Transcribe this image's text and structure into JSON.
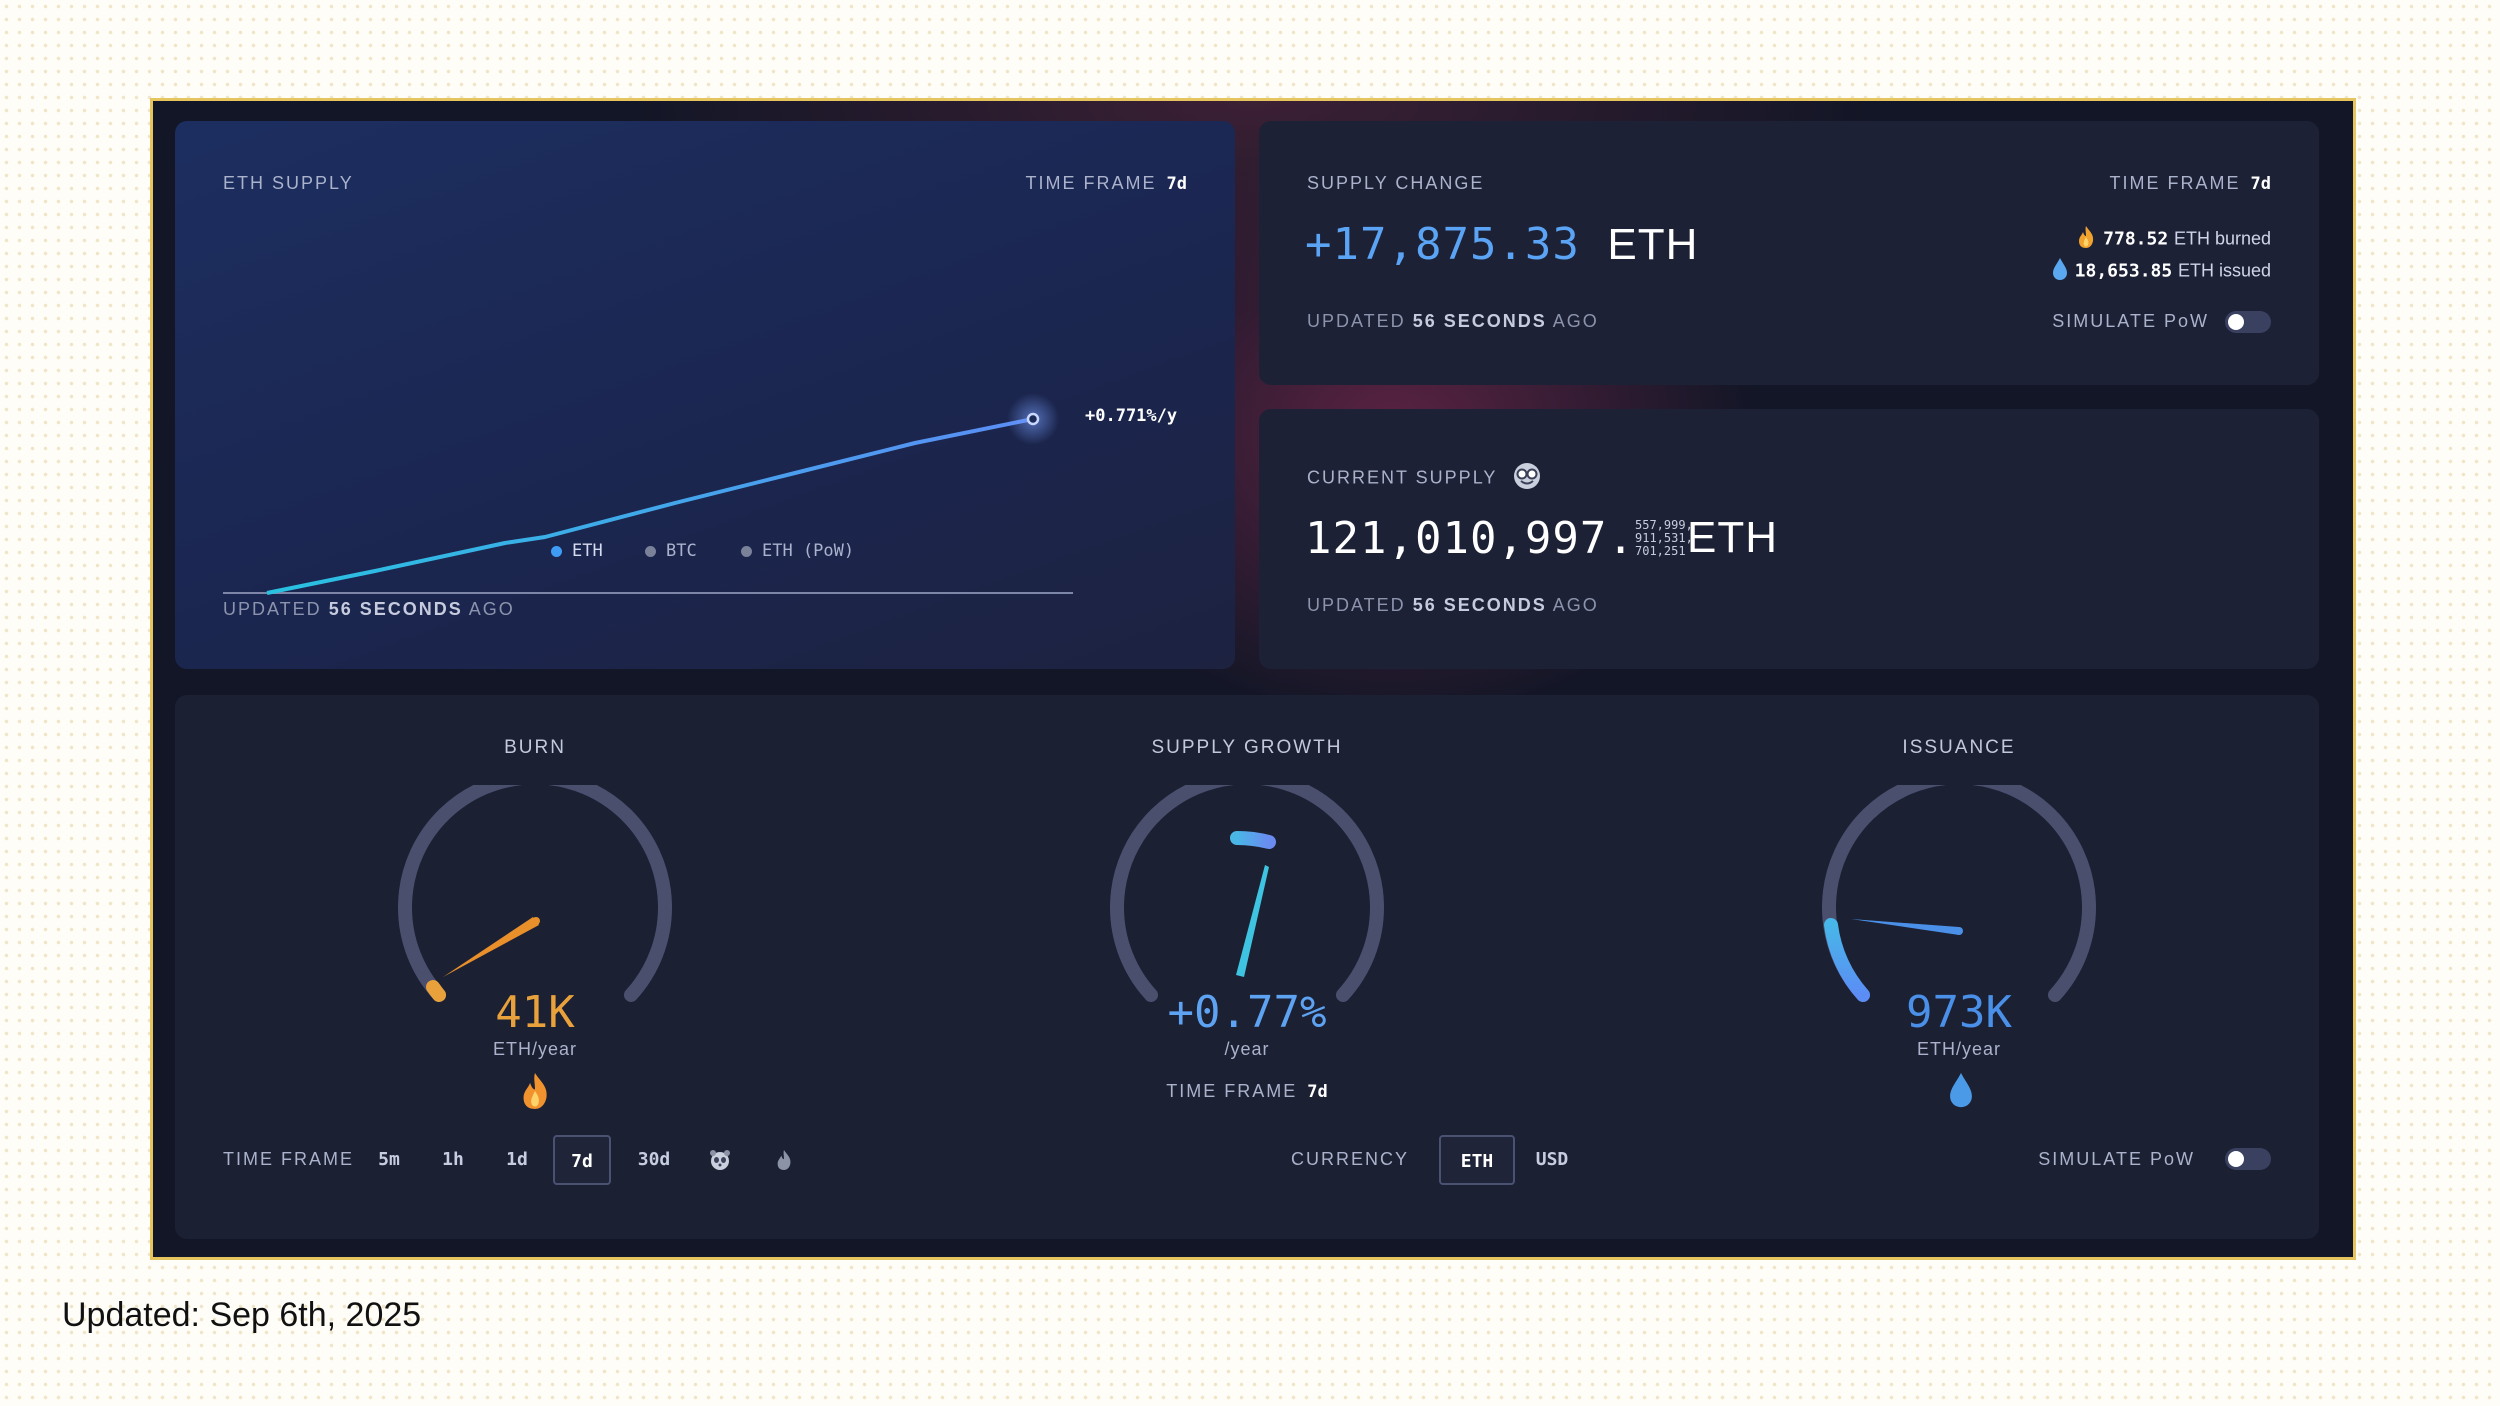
{
  "eth_supply": {
    "title": "ETH SUPPLY",
    "time_frame_label": "TIME FRAME",
    "time_frame_value": "7d",
    "rate_label": "+0.771%/y",
    "legend": [
      {
        "label": "ETH",
        "color": "#3f9cf5"
      },
      {
        "label": "BTC",
        "color": "#7a8299"
      },
      {
        "label": "ETH (PoW)",
        "color": "#7a8299"
      }
    ],
    "updated_prefix": "UPDATED",
    "updated_value": "56 SECONDS",
    "updated_suffix": "AGO"
  },
  "supply_change": {
    "title": "SUPPLY CHANGE",
    "value": "+17,875.33",
    "unit": "ETH",
    "time_frame_label": "TIME FRAME",
    "time_frame_value": "7d",
    "burned_value": "778.52",
    "burned_text": "ETH burned",
    "issued_value": "18,653.85",
    "issued_text": "ETH issued",
    "simulate_label": "SIMULATE PoW",
    "simulate_on": false,
    "updated_prefix": "UPDATED",
    "updated_value": "56 SECONDS",
    "updated_suffix": "AGO"
  },
  "current_supply": {
    "title": "CURRENT SUPPLY",
    "value": "121,010,997.",
    "fraction_lines": [
      "557,999,",
      "911,531,",
      "701,251"
    ],
    "unit": "ETH",
    "updated_prefix": "UPDATED",
    "updated_value": "56 SECONDS",
    "updated_suffix": "AGO"
  },
  "gauges": {
    "burn": {
      "title": "BURN",
      "value": "41K",
      "unit": "ETH/year",
      "icon": "fire-icon",
      "color": "#e9a23b"
    },
    "supply_growth": {
      "title": "SUPPLY GROWTH",
      "value": "+0.77%",
      "unit": "/year",
      "time_frame_label": "TIME FRAME",
      "time_frame_value": "7d",
      "color": "#5a9df0"
    },
    "issuance": {
      "title": "ISSUANCE",
      "value": "973K",
      "unit": "ETH/year",
      "icon": "droplet-icon",
      "color": "#4a90e8"
    }
  },
  "controls": {
    "time_frame_label": "TIME FRAME",
    "time_frames": [
      "5m",
      "1h",
      "1d",
      "7d",
      "30d"
    ],
    "active_time_frame": "7d",
    "currency_label": "CURRENCY",
    "currencies": [
      "ETH",
      "USD"
    ],
    "active_currency": "ETH",
    "simulate_label": "SIMULATE PoW",
    "simulate_on": false
  },
  "footer": {
    "text": "Updated: Sep 6th, 2025"
  },
  "colors": {
    "accent_blue": "#3f9cf5",
    "burn_orange": "#e9a23b",
    "card_bg": "#1d2135",
    "frame_border": "#e6c55e"
  }
}
